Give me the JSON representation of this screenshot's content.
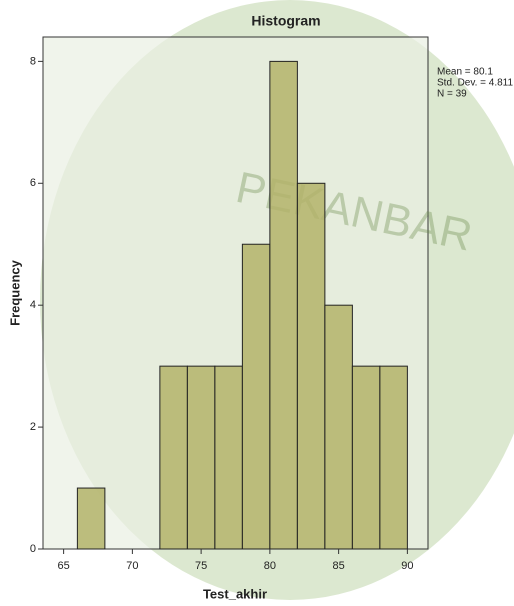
{
  "chart_data": {
    "type": "histogram",
    "title": "Histogram",
    "x_label": "Test_akhir",
    "y_label": "Frequency",
    "bins": [
      66,
      68,
      70,
      72,
      74,
      76,
      78,
      80,
      82,
      84,
      86,
      88,
      90
    ],
    "values": [
      1,
      0,
      0,
      3,
      3,
      3,
      5,
      8,
      6,
      4,
      3,
      3
    ],
    "color": "#b3b36a",
    "xlim": [
      63.5,
      91.5
    ],
    "xticks": [
      65,
      70,
      75,
      80,
      85,
      90
    ],
    "ylim": [
      0,
      8.4
    ],
    "yticks": [
      0,
      2,
      4,
      6,
      8
    ],
    "annotations": [
      "Mean = 80.1",
      "Std. Dev. = 4.811",
      "N = 39"
    ],
    "watermark": "PEKANBAR"
  }
}
